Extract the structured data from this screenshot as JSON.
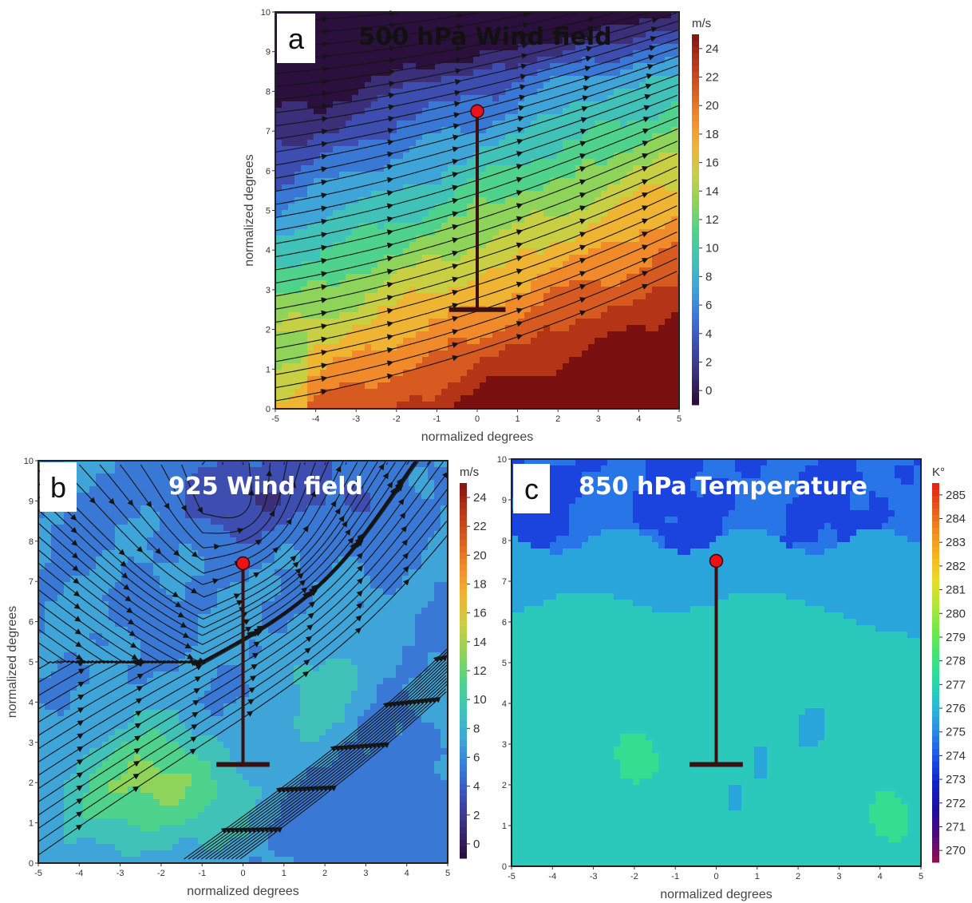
{
  "chart_data": [
    {
      "type": "contour",
      "panel_letter": "a",
      "title": "500 hPa Wind field",
      "xlabel": "normalized degrees",
      "ylabel": "normalized degrees",
      "x_ticks": [
        -5,
        -4,
        -3,
        -2,
        -1,
        0,
        1,
        2,
        3,
        4,
        5
      ],
      "y_ticks": [
        0,
        1,
        2,
        3,
        4,
        5,
        6,
        7,
        8,
        9,
        10
      ],
      "xlim": [
        -5,
        5
      ],
      "ylim": [
        0,
        10
      ],
      "colorbar": {
        "unit": "m/s",
        "ticks": [
          0,
          2,
          4,
          6,
          8,
          10,
          12,
          14,
          16,
          18,
          20,
          22,
          24
        ],
        "range": [
          -1,
          25
        ]
      },
      "overlay": "streamlines",
      "marker": {
        "x": 0,
        "y": 7.5,
        "color": "#e8141a"
      },
      "transect": {
        "x": 0,
        "y_top": 7.5,
        "y_base": 2.5,
        "base_half_width": 0.7
      }
    },
    {
      "type": "contour",
      "panel_letter": "b",
      "title": "925 Wind field",
      "xlabel": "normalized degrees",
      "ylabel": "normalized degrees",
      "x_ticks": [
        -5,
        -4,
        -3,
        -2,
        -1,
        0,
        1,
        2,
        3,
        4,
        5
      ],
      "y_ticks": [
        0,
        1,
        2,
        3,
        4,
        5,
        6,
        7,
        8,
        9,
        10
      ],
      "xlim": [
        -5,
        5
      ],
      "ylim": [
        0,
        10
      ],
      "colorbar": {
        "unit": "m/s",
        "ticks": [
          0,
          2,
          4,
          6,
          8,
          10,
          12,
          14,
          16,
          18,
          20,
          22,
          24
        ],
        "range": [
          -1,
          25
        ]
      },
      "overlay": "streamlines",
      "marker": {
        "x": 0,
        "y": 7.45,
        "color": "#e8141a"
      },
      "transect": {
        "x": 0,
        "y_top": 7.45,
        "y_base": 2.45,
        "base_half_width": 0.65
      }
    },
    {
      "type": "contour",
      "panel_letter": "c",
      "title": "850 hPa Temperature",
      "xlabel": "normalized degrees",
      "ylabel": "",
      "x_ticks": [
        -5,
        -4,
        -3,
        -2,
        -1,
        0,
        1,
        2,
        3,
        4,
        5
      ],
      "y_ticks": [
        0,
        1,
        2,
        3,
        4,
        5,
        6,
        7,
        8,
        9,
        10
      ],
      "xlim": [
        -5,
        5
      ],
      "ylim": [
        0,
        10
      ],
      "colorbar": {
        "unit": "K°",
        "ticks": [
          270,
          271,
          272,
          273,
          274,
          275,
          276,
          277,
          278,
          279,
          280,
          281,
          282,
          283,
          284,
          285
        ],
        "range": [
          269.5,
          285.5
        ]
      },
      "overlay": "none",
      "marker": {
        "x": 0,
        "y": 7.5,
        "color": "#e8141a"
      },
      "transect": {
        "x": 0,
        "y_top": 7.5,
        "y_base": 2.5,
        "base_half_width": 0.65
      }
    }
  ],
  "colors": {
    "wind_colormap": [
      "#2b0f3d",
      "#3b2f7a",
      "#3d4db0",
      "#3a78d6",
      "#3fa4d8",
      "#40c2b9",
      "#4fd28c",
      "#8ed35a",
      "#c8cf43",
      "#f0b433",
      "#f08a2a",
      "#d75a20",
      "#b43417",
      "#7a0f0f"
    ],
    "temp_colormap": [
      "#8a1055",
      "#4a0a7a",
      "#1d0f9e",
      "#0f22c8",
      "#1f4fe6",
      "#2a86e6",
      "#28b8d6",
      "#2bd6a8",
      "#3ee37a",
      "#6be84a",
      "#aee63a",
      "#e6dd2a",
      "#f5b422",
      "#f08a1e",
      "#e6541a",
      "#e01814"
    ],
    "marker": "#e8141a",
    "transect": "#3a1010",
    "streamline": "#141414"
  }
}
